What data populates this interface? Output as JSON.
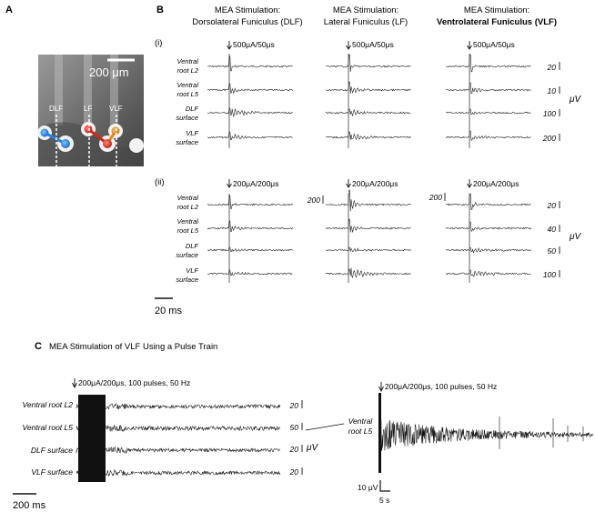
{
  "panel_a": {
    "letter": "A",
    "scale_label": "200 μm",
    "labels": [
      "DLF",
      "LF",
      "VLF"
    ]
  },
  "panel_b": {
    "letter": "B",
    "columns": [
      {
        "line1": "MEA Stimulation:",
        "line2": "Dorsolateral Funiculus (DLF)",
        "bold": false
      },
      {
        "line1": "MEA Stimulation:",
        "line2": "Lateral Funiculus (LF)",
        "bold": false
      },
      {
        "line1": "MEA Stimulation:",
        "line2": "Ventrolateral Funiculus (VLF)",
        "bold": true
      }
    ],
    "sub_i": "(i)",
    "sub_ii": "(ii)",
    "stim_i": "500μA/50μs",
    "stim_ii": "200μA/200μs",
    "row_labels": [
      [
        "Ventral",
        "root L2"
      ],
      [
        "Ventral",
        "root L5"
      ],
      [
        "DLF",
        "surface"
      ],
      [
        "VLF",
        "surface"
      ]
    ],
    "scales_i": [
      "20",
      "10",
      "100",
      "200"
    ],
    "scales_ii": [
      "20",
      "40",
      "50",
      "100"
    ],
    "extra_scale_ii": "200",
    "unit": "μV",
    "time_bar": "20 ms"
  },
  "panel_c": {
    "letter": "C",
    "title": "MEA Stimulation of VLF Using a Pulse Train",
    "stim": "200μA/200μs, 100 pulses, 50 Hz",
    "row_labels": [
      "Ventral root L2",
      "Ventral root L5",
      "DLF surface",
      "VLF surface"
    ],
    "scales": [
      "20",
      "50",
      "20",
      "20"
    ],
    "unit": "μV",
    "time_bar": "200 ms",
    "right_stim": "200μA/200μs, 100 pulses, 50 Hz",
    "right_label": [
      "Ventral",
      "root L5"
    ],
    "right_amp": "10 μV",
    "right_time": "5 s"
  }
}
